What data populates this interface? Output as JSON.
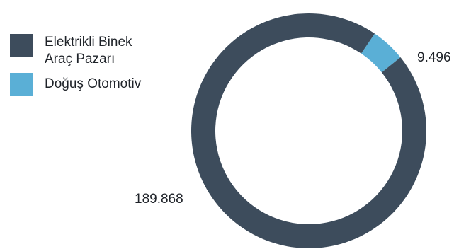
{
  "chart_data": {
    "type": "pie",
    "title": "",
    "categories": [
      "Elektrikli Binek Araç Pazarı",
      "Doğuş Otomotiv"
    ],
    "values": [
      189868,
      9496
    ],
    "value_labels": [
      "189.868",
      "9.496"
    ],
    "colors": [
      "#3d4c5c",
      "#5aafd6"
    ],
    "donut": true,
    "legend_position": "left"
  }
}
